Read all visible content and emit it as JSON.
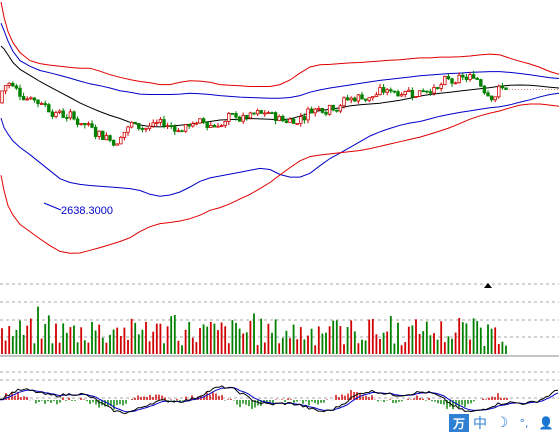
{
  "chart_data": [
    {
      "type": "candlestick",
      "panel": "price",
      "title": "",
      "min_price_label": "2638.3000",
      "colors": {
        "up": "#d00000",
        "down": "#008000",
        "upper_outer_band": "#e00000",
        "upper_inner_band": "#0000c8",
        "middle_line": "#000000",
        "lower_inner_band": "#0000c8",
        "lower_outer_band": "#e00000",
        "last_price_line": "#e08080"
      },
      "band_keys": [
        1,
        4,
        8,
        13,
        20,
        30,
        40,
        50,
        60,
        70,
        80,
        90,
        100,
        110,
        120,
        130,
        140,
        150,
        160,
        170,
        180,
        190,
        200,
        210,
        220,
        230,
        240,
        250,
        260,
        270,
        280,
        290,
        300,
        310,
        320,
        330,
        340,
        350,
        360,
        370,
        380,
        390,
        400,
        410,
        420,
        430,
        440,
        450,
        460,
        470,
        480,
        490,
        500,
        510,
        520,
        530,
        540,
        550,
        559
      ],
      "upper_outer_band": [
        3065,
        3025,
        2987,
        2958,
        2932,
        2911,
        2903,
        2899,
        2896,
        2893,
        2891,
        2891,
        2883,
        2874,
        2867,
        2861,
        2856,
        2853,
        2848,
        2848,
        2854,
        2858,
        2857,
        2854,
        2848,
        2846,
        2845,
        2843,
        2843,
        2843,
        2848,
        2860,
        2878,
        2894,
        2900,
        2901,
        2903,
        2905,
        2906,
        2908,
        2910,
        2912,
        2913,
        2916,
        2918,
        2918,
        2920,
        2920,
        2921,
        2923,
        2926,
        2928,
        2926,
        2917,
        2909,
        2902,
        2893,
        2882,
        2875
      ],
      "upper_inner_band": [
        3009,
        2990,
        2962,
        2935,
        2911,
        2896,
        2885,
        2879,
        2872,
        2865,
        2857,
        2850,
        2845,
        2839,
        2832,
        2828,
        2823,
        2822,
        2822,
        2822,
        2823,
        2825,
        2824,
        2822,
        2819,
        2817,
        2815,
        2814,
        2813,
        2812,
        2812,
        2814,
        2819,
        2828,
        2834,
        2839,
        2843,
        2847,
        2851,
        2855,
        2859,
        2862,
        2865,
        2868,
        2871,
        2873,
        2875,
        2877,
        2878,
        2880,
        2881,
        2882,
        2882,
        2880,
        2877,
        2874,
        2870,
        2866,
        2864
      ],
      "middle_line": [
        2949,
        2942,
        2926,
        2906,
        2888,
        2872,
        2856,
        2842,
        2828,
        2814,
        2800,
        2788,
        2777,
        2767,
        2759,
        2749,
        2742,
        2738,
        2737,
        2739,
        2741,
        2744,
        2748,
        2751,
        2755,
        2756,
        2757,
        2759,
        2758,
        2757,
        2755,
        2758,
        2765,
        2774,
        2780,
        2783,
        2787,
        2792,
        2795,
        2797,
        2799,
        2803,
        2807,
        2812,
        2818,
        2822,
        2825,
        2828,
        2831,
        2834,
        2837,
        2840,
        2844,
        2846,
        2847,
        2846,
        2844,
        2841,
        2839
      ],
      "lower_inner_band": [
        2760,
        2735,
        2718,
        2700,
        2683,
        2664,
        2643,
        2622,
        2601,
        2591,
        2586,
        2583,
        2581,
        2579,
        2577,
        2575,
        2570,
        2560,
        2555,
        2558,
        2566,
        2579,
        2594,
        2603,
        2608,
        2613,
        2618,
        2623,
        2628,
        2625,
        2612,
        2605,
        2605,
        2615,
        2635,
        2654,
        2668,
        2683,
        2698,
        2713,
        2724,
        2733,
        2741,
        2747,
        2751,
        2758,
        2765,
        2770,
        2775,
        2779,
        2783,
        2787,
        2790,
        2795,
        2802,
        2808,
        2816,
        2822,
        2825
      ],
      "lower_outer_band": [
        2610,
        2570,
        2530,
        2505,
        2481,
        2462,
        2443,
        2425,
        2410,
        2405,
        2406,
        2413,
        2420,
        2428,
        2436,
        2446,
        2462,
        2475,
        2483,
        2486,
        2490,
        2496,
        2505,
        2518,
        2525,
        2535,
        2548,
        2560,
        2575,
        2591,
        2611,
        2630,
        2648,
        2659,
        2663,
        2666,
        2669,
        2672,
        2675,
        2680,
        2686,
        2692,
        2698,
        2704,
        2710,
        2718,
        2726,
        2735,
        2746,
        2757,
        2766,
        2773,
        2779,
        2787,
        2794,
        2797,
        2797,
        2794,
        2791
      ]
    },
    {
      "type": "bar",
      "panel": "volume",
      "title": "",
      "colors": {
        "up": "#d00000",
        "down": "#008000",
        "grid": "#8a8a8a"
      }
    },
    {
      "type": "line+bar",
      "panel": "oscillator",
      "title": "",
      "colors": {
        "fast": "#000000",
        "slow": "#0000c8",
        "positive": "#d00000",
        "negative": "#008000",
        "grid": "#8a8a8a"
      }
    }
  ],
  "ime_toolbar": {
    "logo": "万",
    "mode": "中",
    "moon": "☽",
    "punct": "°,",
    "user": "👤"
  }
}
